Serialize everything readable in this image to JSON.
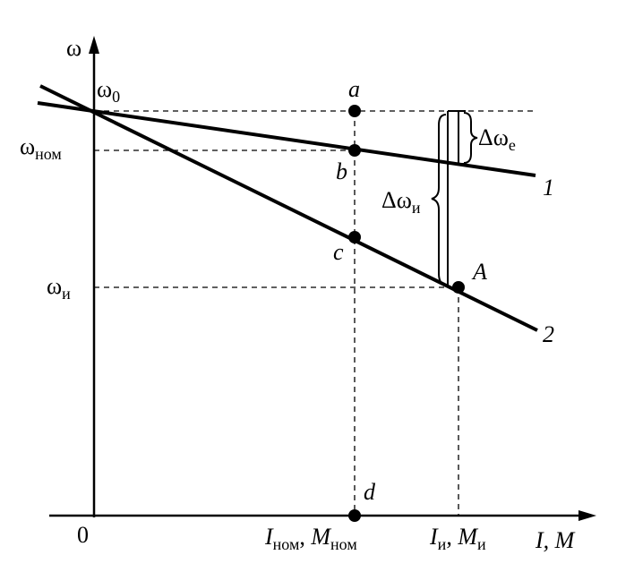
{
  "axes": {
    "y_label": "ω",
    "origin": "0",
    "x_label": "I, M"
  },
  "levels": {
    "omega_0": {
      "main": "ω",
      "sub": "0"
    },
    "omega_nom": {
      "main": "ω",
      "sub": "ном"
    },
    "omega_i": {
      "main": "ω",
      "sub": "и"
    }
  },
  "points": {
    "a": "a",
    "b": "b",
    "c": "c",
    "d": "d",
    "A": "A"
  },
  "lines": {
    "line_1": "1",
    "line_2": "2"
  },
  "deltas": {
    "delta_e": {
      "main": "Δω",
      "sub": "е"
    },
    "delta_i": {
      "main": "Δω",
      "sub": "и"
    }
  },
  "x_marks": {
    "nom": {
      "i": "I",
      "i_sub": "ном",
      "sep": ", ",
      "m": "M",
      "m_sub": "ном"
    },
    "isp": {
      "i": "I",
      "i_sub": "и",
      "sep": ", ",
      "m": "M",
      "m_sub": "и"
    }
  }
}
